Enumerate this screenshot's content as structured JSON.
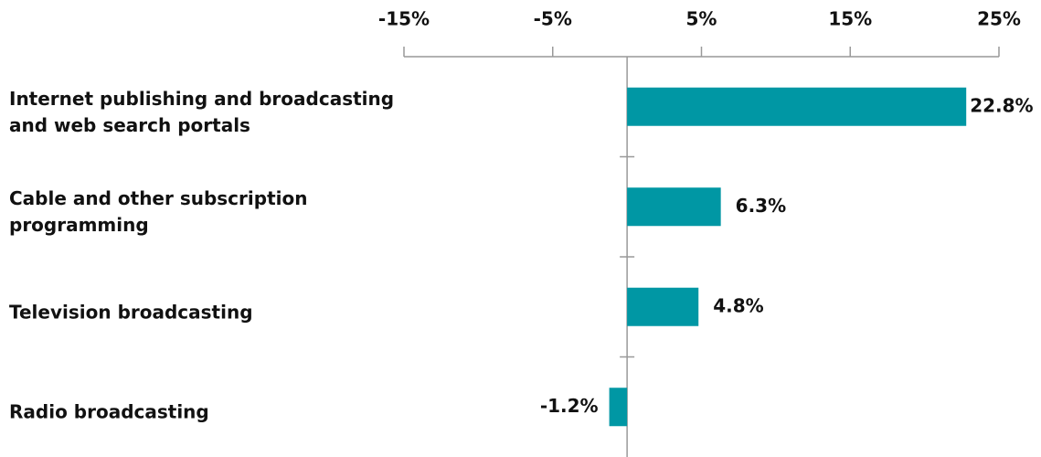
{
  "chart_data": {
    "type": "barh",
    "categories": [
      "Internet publishing and broadcasting and web search portals",
      "Cable and other subscription programming",
      "Television broadcasting",
      "Radio broadcasting"
    ],
    "values": [
      22.8,
      6.3,
      4.8,
      -1.2
    ],
    "value_labels": [
      "22.8%",
      "6.3%",
      "4.8%",
      "-1.2%"
    ],
    "color": "#0097a4",
    "xlim": [
      -15,
      25
    ],
    "xticks": [
      {
        "value": -15,
        "label": "-15%"
      },
      {
        "value": -5,
        "label": "-5%"
      },
      {
        "value": 5,
        "label": "5%"
      },
      {
        "value": 15,
        "label": "15%"
      },
      {
        "value": 25,
        "label": "25%"
      }
    ]
  }
}
